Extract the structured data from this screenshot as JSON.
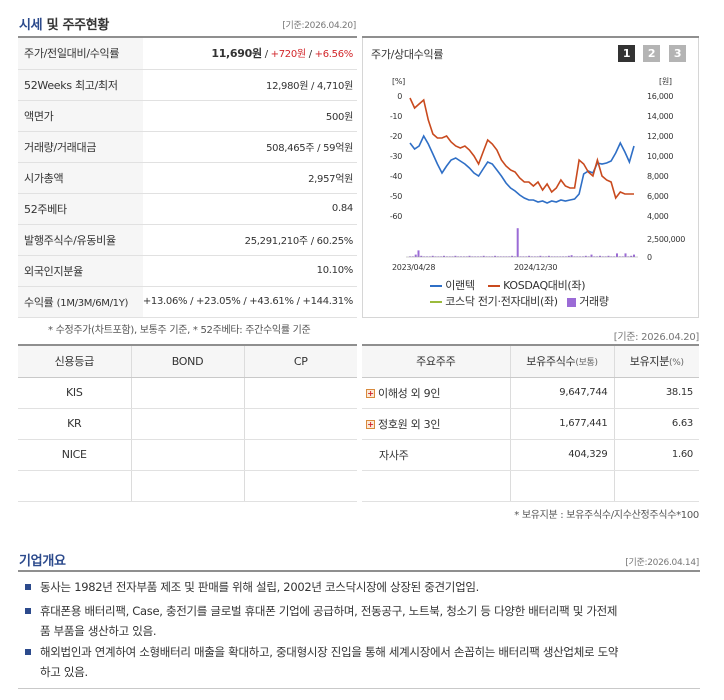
{
  "sections": {
    "market_title_1": "시세",
    "market_title_2": "및 주주현황",
    "market_basis": "[기준:2026.04.20]",
    "holder_basis": "[기준: 2026.04.20]",
    "overview_title": "기업개요",
    "overview_basis": "[기준:2026.04.14]"
  },
  "stock": {
    "rows": [
      {
        "label": "주가/전일대비/수익률",
        "v1": "11,690원",
        "sep1": " / ",
        "v2": "+720원",
        "sep2": " / ",
        "v3": "+6.56%"
      },
      {
        "label": "52Weeks 최고/최저",
        "value": "12,980원 / 4,710원"
      },
      {
        "label": "액면가",
        "value": "500원"
      },
      {
        "label": "거래량/거래대금",
        "value": "508,465주 / 59억원"
      },
      {
        "label": "시가총액",
        "value": "2,957억원"
      },
      {
        "label": "52주베타",
        "value": "0.84"
      },
      {
        "label": "발행주식수/유동비율",
        "value": "25,291,210주 / 60.25%"
      },
      {
        "label": "외국인지분율",
        "value": "10.10%"
      },
      {
        "label": "수익률",
        "label_sub": "(1M/3M/6M/1Y)",
        "value": "+13.06% / +23.05% / +43.61% / +144.31%"
      }
    ],
    "note": "* 수정주가(차트포함), 보통주 기준, * 52주베타: 주간수익률 기준"
  },
  "chart_panel": {
    "title": "주가/상대수익률",
    "pages": [
      "1",
      "2",
      "3"
    ]
  },
  "chart_data": {
    "type": "line",
    "left_unit": "[%]",
    "right_unit": "[원]",
    "y_ticks": [
      "0",
      "-10",
      "-20",
      "-30",
      "-40",
      "-50",
      "-60"
    ],
    "y2_ticks": [
      "16,000",
      "14,000",
      "12,000",
      "10,000",
      "8,000",
      "6,000",
      "4,000"
    ],
    "vol_tick_top": "2,500,000",
    "vol_tick_bottom": "0",
    "x_ticks": [
      "2023/04/28",
      "2024/12/30"
    ],
    "ylim": [
      -60,
      0
    ],
    "y2lim": [
      4000,
      16000
    ],
    "series": [
      {
        "name": "이랜텍",
        "color": "#2f6fc6",
        "axis": "y2",
        "values": [
          11300,
          10700,
          11000,
          12000,
          11200,
          10200,
          9200,
          8300,
          9000,
          9600,
          9800,
          9500,
          9200,
          8800,
          8300,
          8000,
          8700,
          9400,
          9200,
          8600,
          8000,
          7300,
          6800,
          6500,
          6100,
          5800,
          5600,
          5600,
          5400,
          5500,
          5300,
          5500,
          5400,
          5600,
          5500,
          5600,
          5700,
          6200,
          8200,
          8500,
          8300,
          9300,
          9200,
          9300,
          9500,
          10300,
          11300,
          10400,
          9400,
          11000
        ]
      },
      {
        "name": "KOSDAQ대비(좌)",
        "color": "#c94a1e",
        "axis": "y",
        "values": [
          -1,
          -6,
          -4,
          -2,
          -12,
          -19,
          -21,
          -21,
          -20,
          -23,
          -25,
          -26,
          -25,
          -27,
          -30,
          -34,
          -28,
          -22,
          -24,
          -27,
          -32,
          -35,
          -37,
          -38,
          -41,
          -43,
          -43,
          -45,
          -43,
          -47,
          -44,
          -48,
          -46,
          -42,
          -45,
          -46,
          -46,
          -32,
          -34,
          -38,
          -40,
          -32,
          -40,
          -42,
          -43,
          -51,
          -48,
          -49,
          -49,
          -49
        ]
      },
      {
        "name": "코스닥 전기·전자대비(좌)",
        "color": "#9bbb3c",
        "axis": "y",
        "values": []
      }
    ],
    "volume": {
      "name": "거래량",
      "color": "#9b6bd6",
      "values": [
        0.05,
        0.05,
        0.2,
        0.55,
        0.1,
        0.05,
        0.05,
        0.05,
        0.1,
        0.05,
        0.05,
        0.05,
        0.1,
        0.05,
        0.05,
        0.05,
        0.1,
        0.05,
        0.05,
        0.05,
        0.05,
        0.1,
        0.05,
        0.05,
        0.05,
        0.05,
        0.1,
        0.05,
        0.05,
        0.05,
        0.1,
        0.05,
        0.05,
        0.05,
        0.05,
        0.05,
        0.1,
        0.05,
        2.4,
        0.05,
        0.05,
        0.05,
        0.1,
        0.05,
        0.05,
        0.05,
        0.1,
        0.05,
        0.05,
        0.1,
        0.05,
        0.05,
        0.05,
        0.05,
        0.05,
        0.05,
        0.1,
        0.15,
        0.05,
        0.05,
        0.05,
        0.05,
        0.1,
        0.05,
        0.2,
        0.05,
        0.05,
        0.1,
        0.05,
        0.05,
        0.1,
        0.05,
        0.05,
        0.3,
        0.05,
        0.05,
        0.3,
        0.05,
        0.1,
        0.2
      ]
    },
    "vol_max": 2500000,
    "legend": [
      "이랜텍",
      "KOSDAQ대비(좌)",
      "코스닥 전기·전자대비(좌)",
      "거래량"
    ],
    "title": "",
    "xlabel": "",
    "ylabel": ""
  },
  "credit": {
    "headers": [
      "신용등급",
      "BOND",
      "CP"
    ],
    "rows": [
      {
        "agency": "KIS",
        "bond": "",
        "cp": ""
      },
      {
        "agency": "KR",
        "bond": "",
        "cp": ""
      },
      {
        "agency": "NICE",
        "bond": "",
        "cp": ""
      },
      {
        "agency": "",
        "bond": "",
        "cp": ""
      }
    ]
  },
  "holders": {
    "headers": {
      "h1": "주요주주",
      "h2": "보유주식수",
      "h2_sub": "(보통)",
      "h3": "보유지분",
      "h3_sub": "(%)"
    },
    "rows": [
      {
        "name": "이해성 외 9인",
        "expandable": true,
        "shares": "9,647,744",
        "pct": "38.15"
      },
      {
        "name": "정호원 외 3인",
        "expandable": true,
        "shares": "1,677,441",
        "pct": "6.63"
      },
      {
        "name": "자사주",
        "expandable": false,
        "shares": "404,329",
        "pct": "1.60"
      },
      {
        "name": "",
        "expandable": false,
        "shares": "",
        "pct": ""
      }
    ],
    "note": "* 보유지분 : 보유주식수/지수산정주식수*100"
  },
  "overview": {
    "items": [
      "동사는 1982년 전자부품 제조 및 판매를 위해 설립, 2002년 코스닥시장에 상장된 중견기업임.",
      "휴대폰용 배터리팩, Case, 충전기를 글로벌 휴대폰 기업에 공급하며, 전동공구, 노트북, 청소기 등 다양한 배터리팩 및 가전제품 부품을 생산하고 있음.",
      "해외법인과 연계하여 소형배터리 매출을 확대하고, 중대형시장 진입을 통해 세계시장에서 손꼽히는 배터리팩 생산업체로 도약하고 있음."
    ],
    "item2_line1": "휴대폰용 배터리팩, Case, 충전기를 글로벌 휴대폰 기업에 공급하며, 전동공구, 노트북, 청소기 등 다양한 배터리팩 및 가전제",
    "item2_line2": "품 부품을 생산하고 있음.",
    "item3_line1": "해외법인과 연계하여 소형배터리 매출을 확대하고, 중대형시장 진입을 통해 세계시장에서 손꼽히는 배터리팩 생산업체로 도약",
    "item3_line2": "하고 있음."
  }
}
